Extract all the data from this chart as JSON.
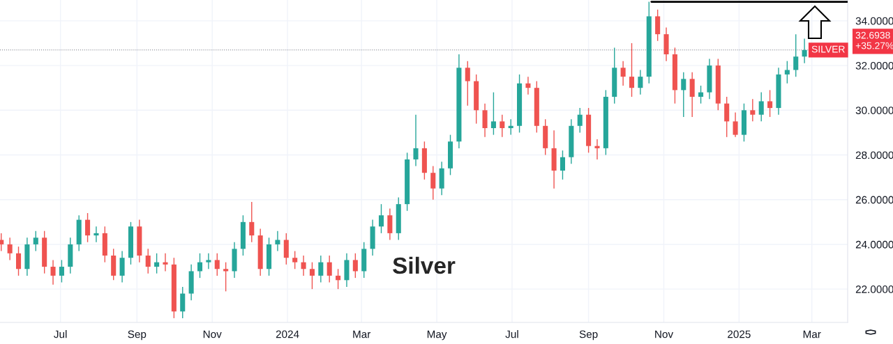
{
  "chart_data": {
    "type": "candlestick",
    "x": [
      "2023-05-14",
      "2023-05-21",
      "2023-05-28",
      "2023-06-04",
      "2023-06-11",
      "2023-06-18",
      "2023-06-25",
      "2023-07-02",
      "2023-07-09",
      "2023-07-16",
      "2023-07-23",
      "2023-07-30",
      "2023-08-06",
      "2023-08-13",
      "2023-08-20",
      "2023-08-27",
      "2023-09-03",
      "2023-09-10",
      "2023-09-17",
      "2023-09-24",
      "2023-10-01",
      "2023-10-08",
      "2023-10-15",
      "2023-10-22",
      "2023-10-29",
      "2023-11-05",
      "2023-11-12",
      "2023-11-19",
      "2023-11-26",
      "2023-12-03",
      "2023-12-10",
      "2023-12-17",
      "2023-12-24",
      "2023-12-31",
      "2024-01-07",
      "2024-01-14",
      "2024-01-21",
      "2024-01-28",
      "2024-02-04",
      "2024-02-11",
      "2024-02-18",
      "2024-02-25",
      "2024-03-03",
      "2024-03-10",
      "2024-03-17",
      "2024-03-24",
      "2024-03-31",
      "2024-04-07",
      "2024-04-14",
      "2024-04-21",
      "2024-04-28",
      "2024-05-05",
      "2024-05-12",
      "2024-05-19",
      "2024-05-26",
      "2024-06-02",
      "2024-06-09",
      "2024-06-16",
      "2024-06-23",
      "2024-06-30",
      "2024-07-07",
      "2024-07-14",
      "2024-07-21",
      "2024-07-28",
      "2024-08-04",
      "2024-08-11",
      "2024-08-18",
      "2024-08-25",
      "2024-09-01",
      "2024-09-08",
      "2024-09-15",
      "2024-09-22",
      "2024-09-29",
      "2024-10-06",
      "2024-10-13",
      "2024-10-20",
      "2024-10-27",
      "2024-11-03",
      "2024-11-10",
      "2024-11-17",
      "2024-11-24",
      "2024-12-01",
      "2024-12-08",
      "2024-12-15",
      "2024-12-22",
      "2024-12-29",
      "2025-01-05",
      "2025-01-12",
      "2025-01-19",
      "2025-01-26",
      "2025-02-02",
      "2025-02-09",
      "2025-02-16",
      "2025-02-23"
    ],
    "ohlc": [
      [
        24.2,
        24.5,
        23.7,
        24.0
      ],
      [
        24.0,
        24.3,
        23.3,
        23.6
      ],
      [
        23.6,
        23.9,
        22.6,
        22.9
      ],
      [
        22.9,
        24.3,
        22.6,
        24.0
      ],
      [
        24.0,
        24.6,
        23.7,
        24.3
      ],
      [
        24.3,
        24.6,
        22.7,
        23.0
      ],
      [
        23.0,
        23.3,
        22.2,
        22.6
      ],
      [
        22.6,
        23.3,
        22.3,
        23.0
      ],
      [
        23.0,
        24.3,
        22.7,
        24.0
      ],
      [
        24.0,
        25.3,
        23.7,
        25.1
      ],
      [
        25.1,
        25.4,
        24.1,
        24.4
      ],
      [
        24.4,
        24.8,
        24.1,
        24.5
      ],
      [
        24.5,
        24.8,
        23.2,
        23.5
      ],
      [
        23.5,
        23.8,
        22.4,
        22.6
      ],
      [
        22.6,
        23.7,
        22.3,
        23.4
      ],
      [
        23.4,
        25.0,
        23.1,
        24.8
      ],
      [
        24.8,
        25.1,
        23.2,
        23.5
      ],
      [
        23.5,
        23.8,
        22.7,
        23.0
      ],
      [
        23.0,
        23.6,
        22.7,
        23.2
      ],
      [
        23.2,
        23.6,
        22.8,
        23.1
      ],
      [
        23.1,
        23.4,
        20.7,
        21.0
      ],
      [
        21.0,
        22.1,
        20.7,
        21.8
      ],
      [
        21.8,
        23.1,
        21.5,
        22.8
      ],
      [
        22.8,
        23.6,
        22.5,
        23.2
      ],
      [
        23.2,
        23.6,
        22.9,
        23.3
      ],
      [
        23.3,
        23.6,
        22.6,
        22.9
      ],
      [
        22.9,
        23.2,
        21.9,
        22.8
      ],
      [
        22.8,
        24.1,
        22.5,
        23.8
      ],
      [
        23.8,
        25.3,
        23.5,
        25.0
      ],
      [
        25.0,
        25.9,
        24.1,
        24.4
      ],
      [
        24.4,
        24.7,
        22.6,
        22.9
      ],
      [
        22.9,
        24.3,
        22.6,
        24.0
      ],
      [
        24.0,
        24.6,
        23.7,
        24.2
      ],
      [
        24.2,
        24.5,
        23.1,
        23.4
      ],
      [
        23.4,
        23.7,
        22.9,
        23.2
      ],
      [
        23.2,
        23.5,
        22.6,
        22.9
      ],
      [
        22.9,
        23.2,
        22.0,
        22.6
      ],
      [
        22.6,
        23.5,
        22.3,
        23.2
      ],
      [
        23.2,
        23.5,
        22.3,
        22.6
      ],
      [
        22.6,
        22.9,
        22.0,
        22.4
      ],
      [
        22.4,
        23.6,
        22.1,
        23.3
      ],
      [
        23.3,
        23.6,
        22.5,
        22.8
      ],
      [
        22.8,
        24.1,
        22.5,
        23.8
      ],
      [
        23.8,
        25.1,
        23.5,
        24.8
      ],
      [
        24.8,
        25.8,
        24.5,
        25.3
      ],
      [
        25.3,
        25.6,
        24.2,
        24.5
      ],
      [
        24.5,
        26.1,
        24.2,
        25.8
      ],
      [
        25.8,
        28.1,
        25.5,
        27.8
      ],
      [
        27.8,
        29.8,
        27.5,
        28.3
      ],
      [
        28.3,
        28.6,
        26.9,
        27.2
      ],
      [
        27.2,
        27.5,
        26.0,
        26.5
      ],
      [
        26.5,
        27.7,
        26.2,
        27.4
      ],
      [
        27.4,
        28.9,
        27.1,
        28.6
      ],
      [
        28.6,
        32.5,
        28.3,
        31.9
      ],
      [
        31.9,
        32.2,
        30.2,
        31.3
      ],
      [
        31.3,
        31.6,
        29.4,
        30.0
      ],
      [
        30.0,
        30.3,
        28.8,
        29.2
      ],
      [
        29.2,
        30.8,
        28.9,
        29.5
      ],
      [
        29.5,
        29.8,
        28.8,
        29.2
      ],
      [
        29.2,
        29.6,
        28.9,
        29.3
      ],
      [
        29.3,
        31.6,
        29.0,
        31.2
      ],
      [
        31.2,
        31.5,
        30.7,
        31.0
      ],
      [
        31.0,
        31.3,
        29.0,
        29.3
      ],
      [
        29.3,
        29.6,
        28.0,
        28.3
      ],
      [
        28.3,
        29.1,
        26.5,
        27.3
      ],
      [
        27.3,
        28.2,
        26.9,
        27.9
      ],
      [
        27.9,
        29.6,
        27.6,
        29.3
      ],
      [
        29.3,
        30.1,
        29.0,
        29.8
      ],
      [
        29.8,
        30.1,
        28.1,
        28.4
      ],
      [
        28.4,
        28.7,
        27.8,
        28.3
      ],
      [
        28.3,
        30.9,
        28.0,
        30.6
      ],
      [
        30.6,
        32.8,
        30.3,
        31.9
      ],
      [
        31.9,
        32.2,
        31.1,
        31.5
      ],
      [
        31.5,
        33.0,
        30.6,
        31.0
      ],
      [
        31.0,
        31.8,
        30.7,
        31.5
      ],
      [
        31.5,
        34.85,
        31.2,
        34.2
      ],
      [
        34.2,
        34.5,
        33.1,
        33.4
      ],
      [
        33.4,
        33.7,
        32.2,
        32.5
      ],
      [
        32.5,
        32.8,
        30.3,
        30.9
      ],
      [
        30.9,
        31.7,
        29.7,
        31.4
      ],
      [
        31.4,
        31.7,
        29.7,
        30.6
      ],
      [
        30.6,
        31.1,
        30.3,
        30.8
      ],
      [
        30.8,
        32.3,
        30.5,
        32.0
      ],
      [
        32.0,
        32.3,
        30.0,
        30.3
      ],
      [
        30.3,
        30.6,
        28.8,
        29.5
      ],
      [
        29.5,
        29.9,
        28.8,
        28.9
      ],
      [
        28.9,
        30.3,
        28.6,
        30.0
      ],
      [
        30.0,
        30.5,
        29.5,
        29.8
      ],
      [
        29.8,
        30.8,
        29.5,
        30.4
      ],
      [
        30.4,
        30.9,
        29.7,
        30.1
      ],
      [
        30.1,
        31.9,
        29.8,
        31.6
      ],
      [
        31.6,
        32.2,
        31.2,
        31.8
      ],
      [
        31.8,
        33.4,
        31.5,
        32.4
      ],
      [
        32.4,
        33.2,
        32.1,
        32.69
      ]
    ],
    "colors": [
      "#ef5350",
      "#ef5350",
      "#ef5350",
      "#26a69a",
      "#26a69a",
      "#ef5350",
      "#ef5350",
      "#26a69a",
      "#26a69a",
      "#26a69a",
      "#ef5350",
      "#26a69a",
      "#ef5350",
      "#ef5350",
      "#26a69a",
      "#26a69a",
      "#ef5350",
      "#ef5350",
      "#26a69a",
      "#ef5350",
      "#ef5350",
      "#26a69a",
      "#26a69a",
      "#26a69a",
      "#26a69a",
      "#ef5350",
      "#ef5350",
      "#26a69a",
      "#26a69a",
      "#ef5350",
      "#ef5350",
      "#26a69a",
      "#26a69a",
      "#ef5350",
      "#ef5350",
      "#ef5350",
      "#ef5350",
      "#26a69a",
      "#ef5350",
      "#ef5350",
      "#26a69a",
      "#ef5350",
      "#26a69a",
      "#26a69a",
      "#26a69a",
      "#ef5350",
      "#26a69a",
      "#26a69a",
      "#26a69a",
      "#ef5350",
      "#ef5350",
      "#26a69a",
      "#26a69a",
      "#26a69a",
      "#ef5350",
      "#ef5350",
      "#ef5350",
      "#26a69a",
      "#ef5350",
      "#26a69a",
      "#26a69a",
      "#ef5350",
      "#ef5350",
      "#ef5350",
      "#ef5350",
      "#26a69a",
      "#26a69a",
      "#26a69a",
      "#ef5350",
      "#ef5350",
      "#26a69a",
      "#26a69a",
      "#ef5350",
      "#ef5350",
      "#26a69a",
      "#26a69a",
      "#ef5350",
      "#ef5350",
      "#ef5350",
      "#26a69a",
      "#ef5350",
      "#26a69a",
      "#26a69a",
      "#ef5350",
      "#ef5350",
      "#ef5350",
      "#26a69a",
      "#ef5350",
      "#26a69a",
      "#ef5350",
      "#26a69a",
      "#26a69a",
      "#26a69a",
      "#26a69a"
    ],
    "series": [
      {
        "type": "line",
        "x": [
          "2024-10-22",
          "2025-03-30"
        ],
        "values": [
          34.85,
          34.85
        ],
        "color": "#000000"
      }
    ],
    "ref_lines": [
      {
        "axis": "y",
        "value": 32.6938,
        "label": "SILVER",
        "color": "#787b86",
        "line_style": "dotted"
      }
    ],
    "annotations": [
      "Silver",
      "32.6938\n+35.27%"
    ],
    "xlim": [
      "2023-05-13",
      "2025-03-30"
    ],
    "xticks": [
      {
        "value": "2023-07-01",
        "label": "Jul"
      },
      {
        "value": "2023-09-01",
        "label": "Sep"
      },
      {
        "value": "2023-11-01",
        "label": "Nov"
      },
      {
        "value": "2024-01-01",
        "label": "2024"
      },
      {
        "value": "2024-03-01",
        "label": "Mar"
      },
      {
        "value": "2024-05-01",
        "label": "May"
      },
      {
        "value": "2024-07-01",
        "label": "Jul"
      },
      {
        "value": "2024-09-01",
        "label": "Sep"
      },
      {
        "value": "2024-11-01",
        "label": "Nov"
      },
      {
        "value": "2025-01-01",
        "label": "2025"
      },
      {
        "value": "2025-03-01",
        "label": "Mar"
      }
    ],
    "ylim": [
      20.51,
      34.93
    ],
    "yticks": [
      {
        "value": 22,
        "label": "22.0000"
      },
      {
        "value": 24,
        "label": "24.0000"
      },
      {
        "value": 26,
        "label": "26.0000"
      },
      {
        "value": 28,
        "label": "28.0000"
      },
      {
        "value": 30,
        "label": "30.0000"
      },
      {
        "value": 32,
        "label": "32.0000"
      },
      {
        "value": 34,
        "label": "34.0000"
      }
    ],
    "grid": true
  }
}
